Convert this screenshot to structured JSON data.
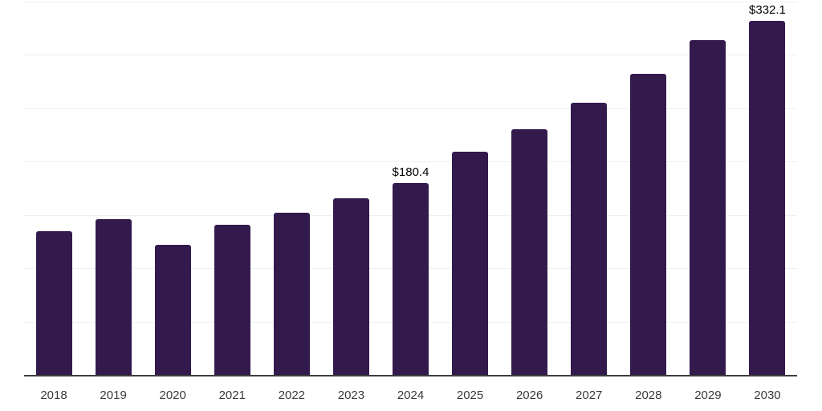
{
  "chart_style": {
    "background": "#ffffff",
    "bar_color": "#331a4d",
    "grid_color": "#f0f0f2",
    "axis_color": "#3d3d3d",
    "tick_color": "#3a3a3a",
    "data_label_color": "#000000"
  },
  "chart_data": {
    "type": "bar",
    "title": "",
    "xlabel": "",
    "ylabel": "",
    "categories": [
      "2018",
      "2019",
      "2020",
      "2021",
      "2022",
      "2023",
      "2024",
      "2025",
      "2026",
      "2027",
      "2028",
      "2029",
      "2030"
    ],
    "values": [
      135.4,
      146.7,
      122.6,
      140.9,
      152.7,
      166.2,
      180.4,
      209.9,
      230.6,
      255.2,
      282.5,
      313.9,
      332.1
    ],
    "data_labels": [
      {
        "category": "2024",
        "text": "$180.4"
      },
      {
        "category": "2030",
        "text": "$332.1"
      }
    ],
    "ylim": [
      0,
      350
    ],
    "grid_step": 50,
    "grid": "horizontal",
    "y_axis_labels_visible": false,
    "legend": "none"
  }
}
